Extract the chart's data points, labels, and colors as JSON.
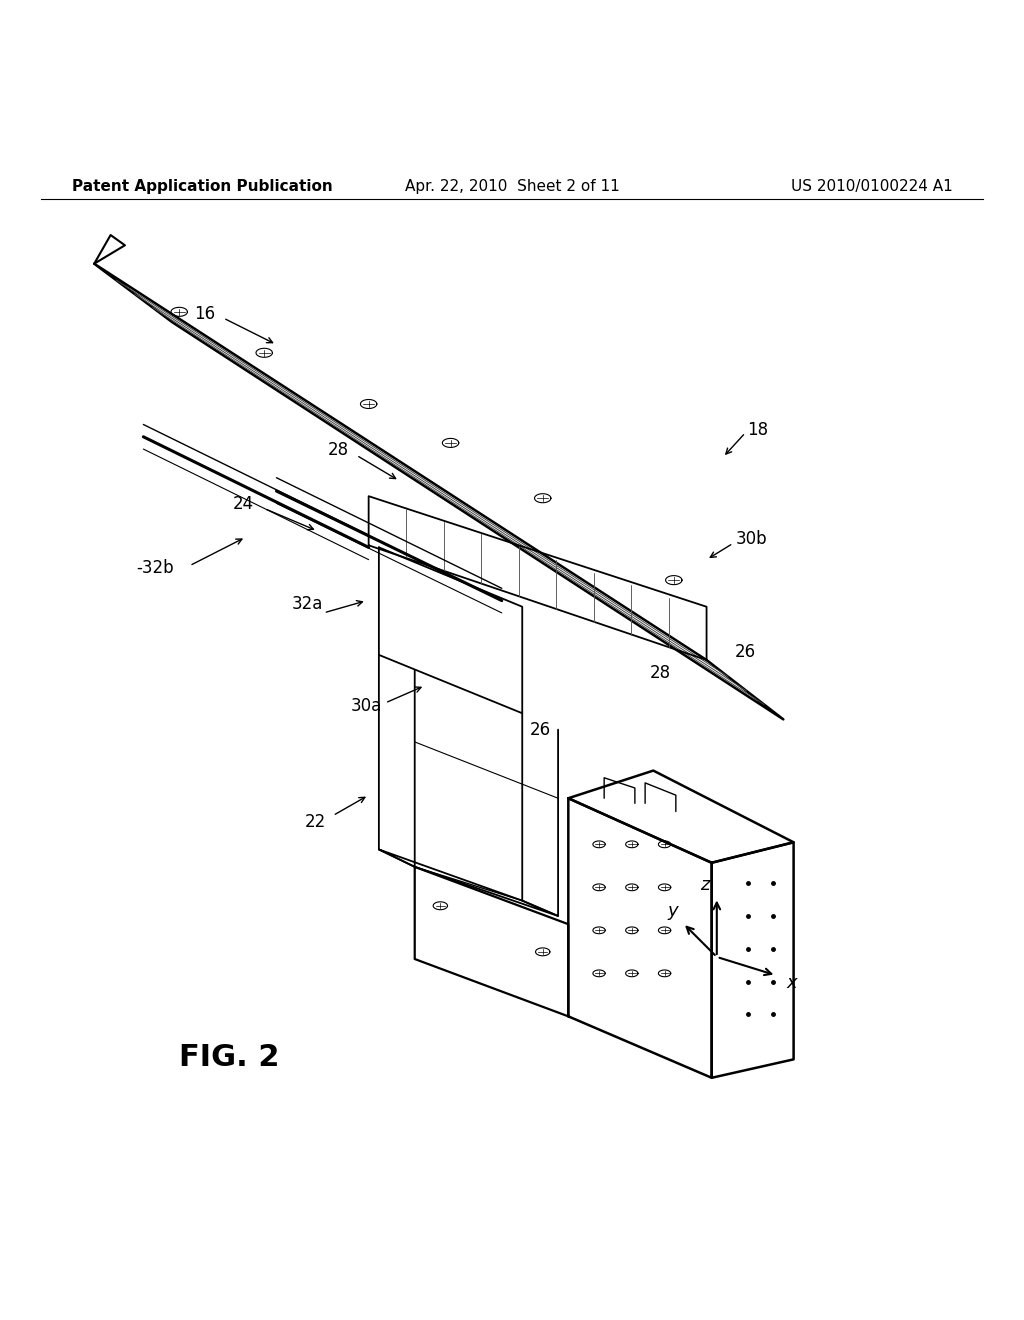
{
  "background_color": "#ffffff",
  "header_left": "Patent Application Publication",
  "header_center": "Apr. 22, 2010  Sheet 2 of 11",
  "header_right": "US 2010/0100224 A1",
  "figure_label": "FIG. 2",
  "header_font_size": 11,
  "fig_label_font_size": 22,
  "ref_font_size": 12
}
